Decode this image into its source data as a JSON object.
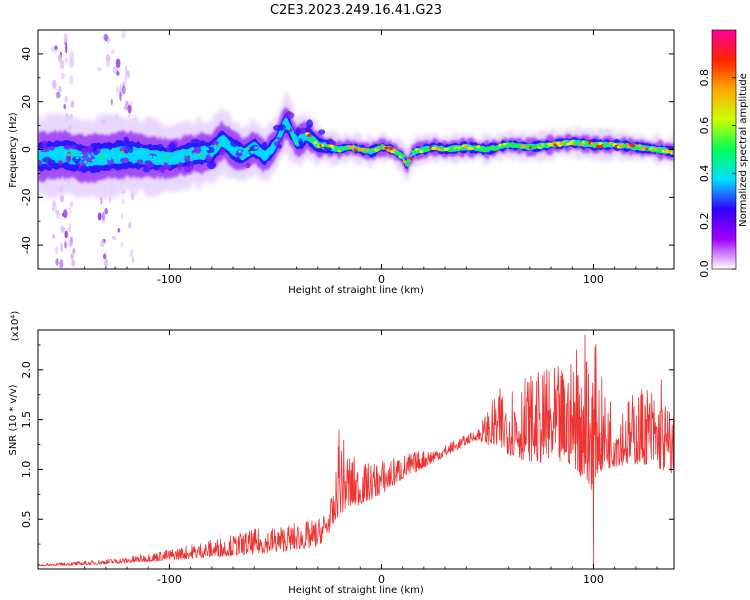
{
  "title": "C2E3.2023.249.16.41.G23",
  "colors": {
    "snr_line": "#ee3333",
    "colormap": [
      "#ffffff",
      "#a000ff",
      "#3300ff",
      "#00e0ff",
      "#00ff55",
      "#ccff00",
      "#ffaa00",
      "#ff2200",
      "#ff0099"
    ]
  },
  "chart_data": [
    {
      "type": "heatmap",
      "name": "spectrogram",
      "xlabel": "Height of straight line (km)",
      "ylabel": "Frequency (Hz)",
      "xlim": [
        -162,
        138
      ],
      "ylim": [
        -50,
        50
      ],
      "x_ticks": [
        -100,
        0,
        100
      ],
      "y_ticks": [
        -40,
        -20,
        0,
        20,
        40
      ],
      "x_tick_labels": [
        "-100",
        "0",
        "100"
      ],
      "y_tick_labels": [
        "-40",
        "-20",
        "0",
        "20",
        "40"
      ],
      "colorbar": {
        "label": "Normalized spectral amplitude",
        "range": [
          0,
          1
        ],
        "ticks": [
          0.0,
          0.2,
          0.4,
          0.6,
          0.8
        ],
        "tick_labels": [
          "0.0",
          "0.2",
          "0.4",
          "0.6",
          "0.8"
        ],
        "colormap": "rainbow"
      },
      "ridge": {
        "x": [
          -160,
          -150,
          -140,
          -130,
          -120,
          -110,
          -100,
          -90,
          -80,
          -75,
          -70,
          -65,
          -60,
          -55,
          -50,
          -45,
          -40,
          -35,
          -30,
          -25,
          -20,
          -15,
          -10,
          -5,
          0,
          5,
          10,
          12,
          15,
          20,
          25,
          30,
          40,
          50,
          60,
          70,
          80,
          90,
          100,
          110,
          120,
          130,
          138
        ],
        "y": [
          -3,
          -2,
          -4,
          -3,
          -2,
          -3,
          -4,
          -2,
          -1,
          4,
          0,
          -2,
          1,
          -3,
          2,
          12,
          3,
          6,
          2,
          1,
          0,
          1,
          0,
          -1,
          1,
          0,
          -3,
          -7,
          -1,
          0,
          1,
          0,
          1,
          0,
          2,
          1,
          2,
          3,
          2,
          2,
          1,
          0,
          -1
        ]
      },
      "spread": {
        "x": [
          -160,
          -120,
          -100,
          -80,
          -60,
          -40,
          -30,
          -20,
          0,
          50,
          100,
          138
        ],
        "y": [
          6,
          6,
          5,
          5,
          4,
          4,
          3,
          2,
          2,
          2,
          2,
          2
        ]
      },
      "stripes": [
        {
          "x": -150,
          "width": 5
        },
        {
          "x": -125,
          "width": 8
        }
      ]
    },
    {
      "type": "line",
      "name": "snr",
      "xlabel": "Height of straight line (km)",
      "ylabel": "SNR (10 * v/v)",
      "scale_label": "(x10⁴)",
      "xlim": [
        -162,
        138
      ],
      "ylim": [
        0,
        24000
      ],
      "x_ticks": [
        -100,
        0,
        100
      ],
      "y_ticks": [
        5000,
        10000,
        15000,
        20000
      ],
      "x_tick_labels": [
        "-100",
        "0",
        "100"
      ],
      "y_tick_labels": [
        "0.5",
        "1.0",
        "1.5",
        "2.0"
      ],
      "series": [
        {
          "envelope_x": [
            -162,
            -140,
            -120,
            -100,
            -80,
            -60,
            -45,
            -30,
            -25,
            -22,
            -20,
            -15,
            -10,
            0,
            10,
            20,
            30,
            40,
            45,
            55,
            65,
            80,
            90,
            95,
            98,
            100,
            105,
            115,
            125,
            138
          ],
          "envelope_lo": [
            300,
            400,
            600,
            900,
            1200,
            1500,
            1800,
            2200,
            3500,
            4500,
            5500,
            6000,
            6500,
            7500,
            9000,
            10200,
            11300,
            12500,
            13000,
            12000,
            11000,
            10500,
            10500,
            9000,
            7000,
            9000,
            10000,
            10500,
            10500,
            9500
          ],
          "envelope_hi": [
            500,
            800,
            1200,
            2000,
            3000,
            4000,
            4500,
            5000,
            6500,
            8000,
            14000,
            12000,
            10500,
            11000,
            11500,
            12000,
            12500,
            13500,
            14000,
            18000,
            19500,
            20000,
            21000,
            22000,
            23000,
            24000,
            18000,
            17000,
            19000,
            16000
          ],
          "spikes": [
            {
              "x": -20,
              "y": 14000
            },
            {
              "x": 78,
              "y": 20000
            },
            {
              "x": 92,
              "y": 22000
            },
            {
              "x": 96,
              "y": 23500
            },
            {
              "x": 100,
              "y": 24500
            },
            {
              "x": 100,
              "y": 0
            },
            {
              "x": 132,
              "y": 19000
            }
          ]
        }
      ]
    }
  ]
}
